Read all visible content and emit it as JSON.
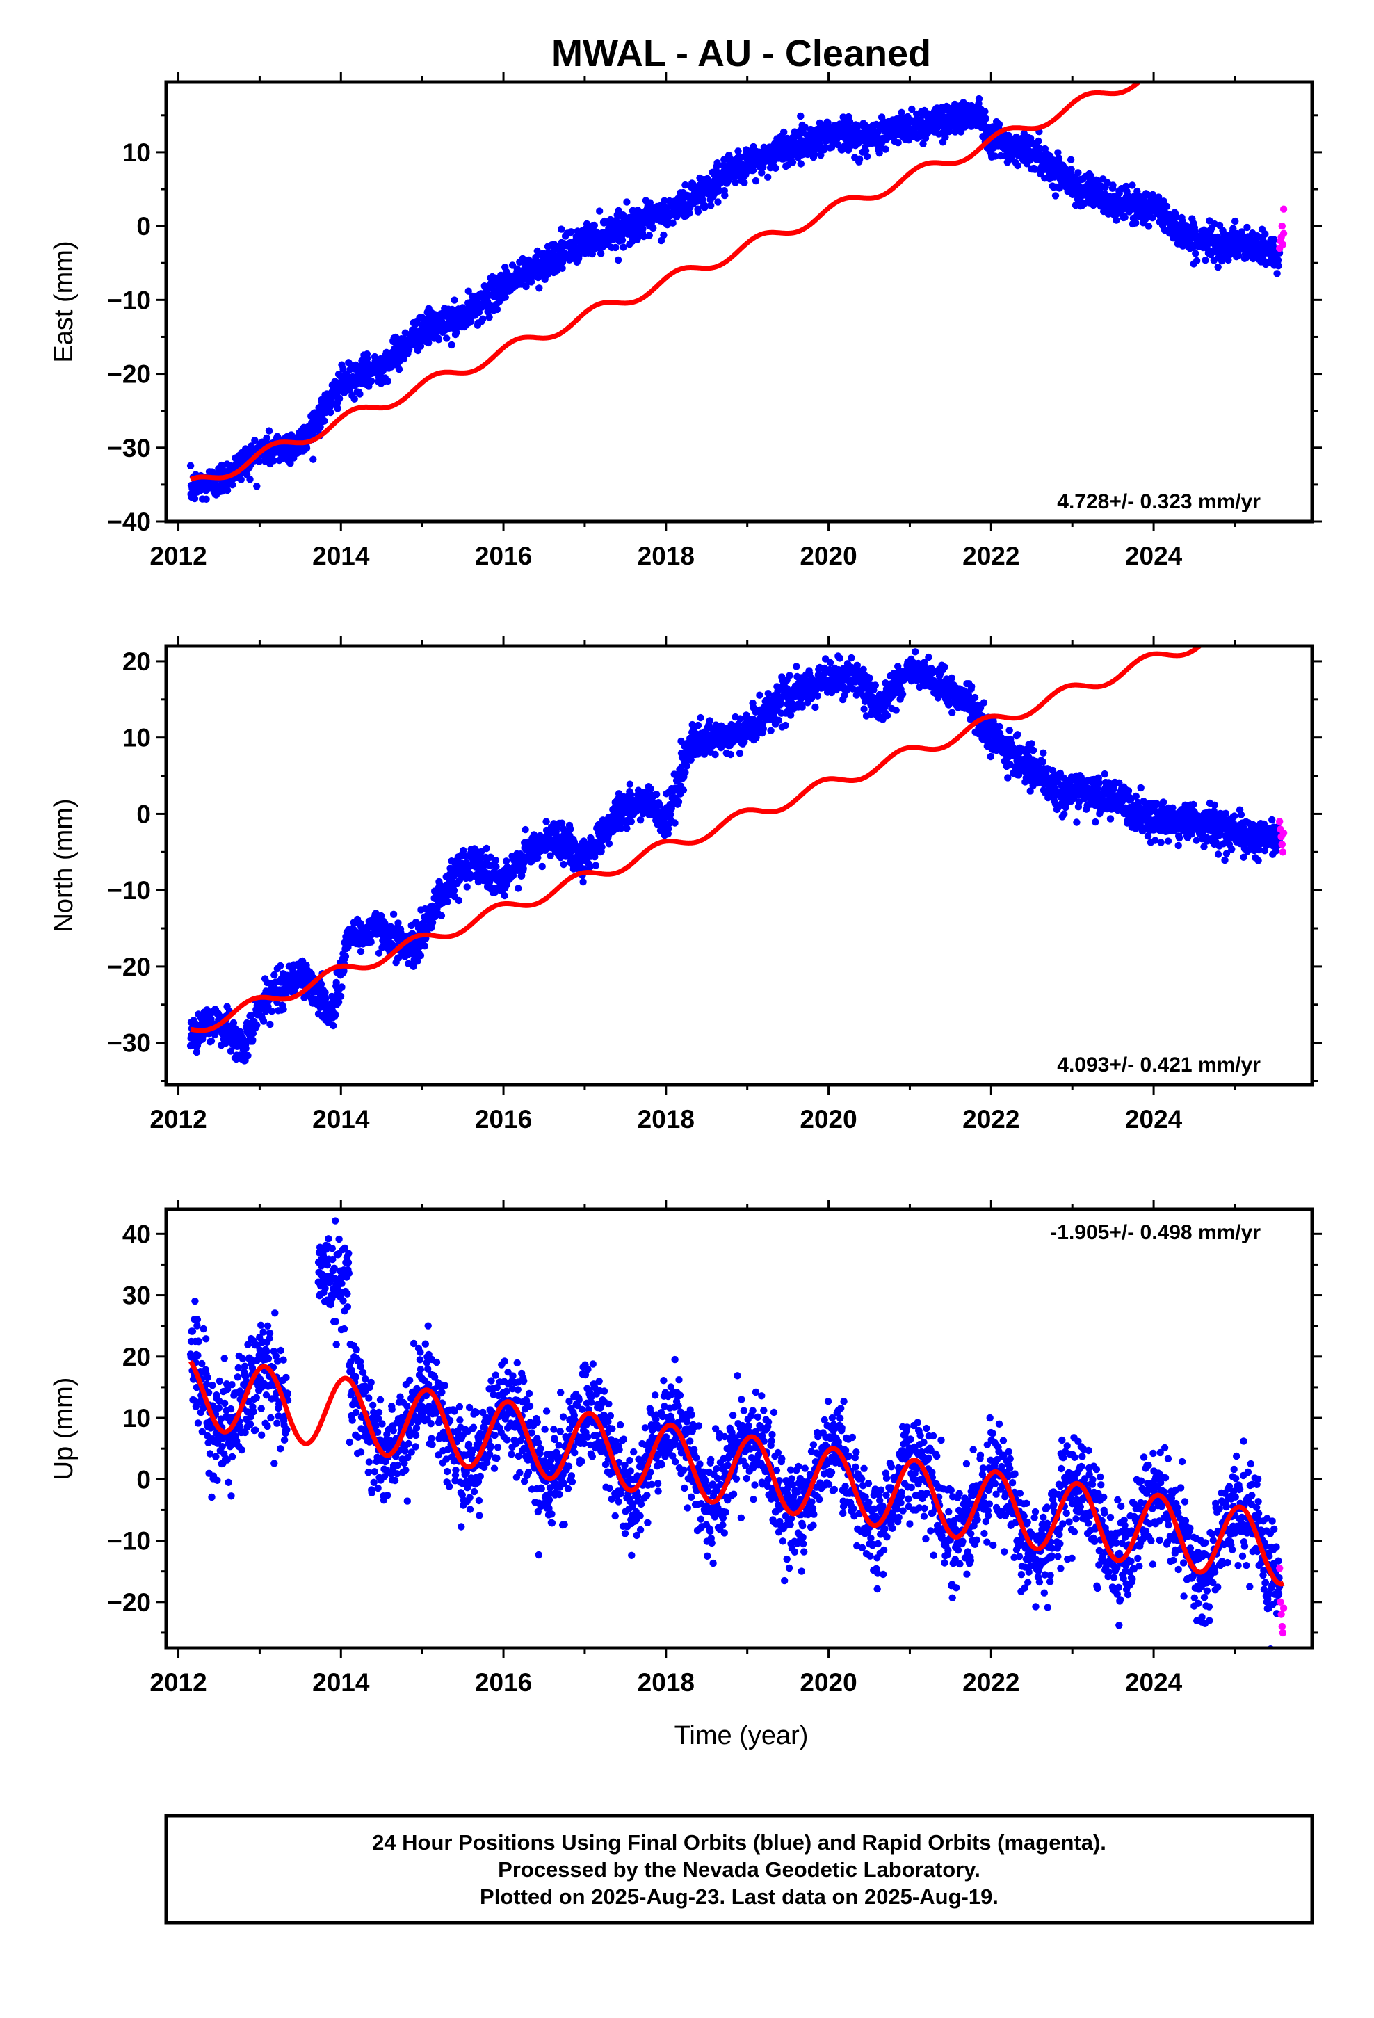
{
  "title": "MWAL  - AU - Cleaned",
  "xlabel": "Time (year)",
  "footer": [
    "24 Hour Positions Using Final Orbits (blue) and Rapid Orbits (magenta).",
    "Processed by the Nevada Geodetic Laboratory.",
    "Plotted on 2025-Aug-23. Last data on 2025-Aug-19."
  ],
  "colors": {
    "final": "#0000ff",
    "rapid": "#ff00ff",
    "model": "#ff0000",
    "frame": "#000000"
  },
  "chart_data": [
    {
      "type": "scatter",
      "name": "east",
      "ylabel": "East (mm)",
      "rate_label": "4.728+/- 0.323 mm/yr",
      "xlim": [
        2011.85,
        2025.95
      ],
      "ylim": [
        -40,
        19.5
      ],
      "xticks": [
        2012,
        2014,
        2016,
        2018,
        2020,
        2022,
        2024
      ],
      "yticks": [
        -40,
        -30,
        -20,
        -10,
        0,
        10
      ],
      "series": [
        {
          "name": "final",
          "role": "blue",
          "trend": [
            [
              2012.15,
              -35.5
            ],
            [
              2012.5,
              -34.5
            ],
            [
              2013.0,
              -30.5
            ],
            [
              2013.5,
              -29.5
            ],
            [
              2014.0,
              -21.5
            ],
            [
              2014.5,
              -19
            ],
            [
              2015.0,
              -14
            ],
            [
              2015.5,
              -12.5
            ],
            [
              2016.0,
              -8
            ],
            [
              2016.5,
              -5
            ],
            [
              2017.0,
              -2
            ],
            [
              2017.5,
              0
            ],
            [
              2018.0,
              1.5
            ],
            [
              2018.5,
              5
            ],
            [
              2019.0,
              8.5
            ],
            [
              2019.5,
              10.5
            ],
            [
              2020.0,
              12.5
            ],
            [
              2020.5,
              12
            ],
            [
              2021.0,
              13.5
            ],
            [
              2021.5,
              14.5
            ],
            [
              2021.85,
              15.5
            ],
            [
              2022.0,
              12
            ],
            [
              2022.5,
              10
            ],
            [
              2023.0,
              6
            ],
            [
              2023.5,
              3
            ],
            [
              2024.0,
              2.5
            ],
            [
              2024.5,
              -2
            ],
            [
              2025.0,
              -2.5
            ],
            [
              2025.5,
              -3.5
            ]
          ],
          "noise": 1.1
        },
        {
          "name": "rapid",
          "role": "magenta",
          "points": [
            [
              2025.55,
              -3
            ],
            [
              2025.56,
              -2
            ],
            [
              2025.57,
              -1.5
            ],
            [
              2025.58,
              0
            ],
            [
              2025.59,
              -2.5
            ],
            [
              2025.6,
              2.3
            ],
            [
              2025.6,
              -1
            ]
          ]
        }
      ],
      "model": {
        "rate": 4.728,
        "t0": 2012.15,
        "y0": -35.2,
        "amp1": 0.9,
        "phase1": 0.0
      }
    },
    {
      "type": "scatter",
      "name": "north",
      "ylabel": "North (mm)",
      "rate_label": "4.093+/- 0.421 mm/yr",
      "xlim": [
        2011.85,
        2025.95
      ],
      "ylim": [
        -35.5,
        22
      ],
      "xticks": [
        2012,
        2014,
        2016,
        2018,
        2020,
        2022,
        2024
      ],
      "yticks": [
        -30,
        -20,
        -10,
        0,
        10,
        20
      ],
      "series": [
        {
          "name": "final",
          "role": "blue",
          "trend": [
            [
              2012.15,
              -29
            ],
            [
              2012.5,
              -27
            ],
            [
              2012.8,
              -31
            ],
            [
              2013.0,
              -25
            ],
            [
              2013.5,
              -21
            ],
            [
              2013.9,
              -26
            ],
            [
              2014.1,
              -16
            ],
            [
              2014.5,
              -15
            ],
            [
              2014.9,
              -18
            ],
            [
              2015.2,
              -11
            ],
            [
              2015.6,
              -6
            ],
            [
              2016.0,
              -9
            ],
            [
              2016.3,
              -5
            ],
            [
              2016.7,
              -3
            ],
            [
              2017.0,
              -6
            ],
            [
              2017.4,
              0
            ],
            [
              2017.8,
              2
            ],
            [
              2018.0,
              -1
            ],
            [
              2018.3,
              9
            ],
            [
              2018.8,
              10
            ],
            [
              2019.0,
              11
            ],
            [
              2019.4,
              15
            ],
            [
              2019.7,
              16
            ],
            [
              2020.0,
              18
            ],
            [
              2020.3,
              18
            ],
            [
              2020.6,
              14
            ],
            [
              2021.0,
              19
            ],
            [
              2021.3,
              17
            ],
            [
              2021.7,
              15
            ],
            [
              2022.0,
              10
            ],
            [
              2022.4,
              7
            ],
            [
              2022.8,
              3
            ],
            [
              2023.1,
              3
            ],
            [
              2023.5,
              2
            ],
            [
              2023.8,
              0
            ],
            [
              2024.1,
              -1
            ],
            [
              2024.5,
              -1
            ],
            [
              2024.9,
              -2
            ],
            [
              2025.2,
              -3
            ],
            [
              2025.55,
              -3
            ]
          ],
          "noise": 1.2
        },
        {
          "name": "rapid",
          "role": "magenta",
          "points": [
            [
              2025.55,
              -1
            ],
            [
              2025.56,
              -2
            ],
            [
              2025.57,
              -3
            ],
            [
              2025.58,
              -4
            ],
            [
              2025.59,
              -5
            ],
            [
              2025.6,
              -2.5
            ]
          ]
        }
      ],
      "model": {
        "rate": 4.093,
        "t0": 2012.15,
        "y0": -28.3,
        "amp1": 0.9,
        "phase1": 1.5
      }
    },
    {
      "type": "scatter",
      "name": "up",
      "ylabel": "Up (mm)",
      "rate_label": "-1.905+/- 0.498 mm/yr",
      "xlim": [
        2011.85,
        2025.95
      ],
      "ylim": [
        -27.5,
        44
      ],
      "xticks": [
        2012,
        2014,
        2016,
        2018,
        2020,
        2022,
        2024
      ],
      "yticks": [
        -20,
        -10,
        0,
        10,
        20,
        30,
        40
      ],
      "series": [
        {
          "name": "final",
          "role": "blue",
          "noise": 4.0,
          "gap": [
            2013.35,
            2013.72
          ],
          "outlier_cluster": {
            "x": [
              2013.72,
              2014.1
            ],
            "center": 33,
            "spread": 3.5
          }
        },
        {
          "name": "rapid",
          "role": "magenta",
          "points": [
            [
              2025.55,
              -14.5
            ],
            [
              2025.56,
              -20
            ],
            [
              2025.57,
              -22
            ],
            [
              2025.58,
              -24
            ],
            [
              2025.59,
              -25
            ],
            [
              2025.6,
              -21
            ]
          ]
        }
      ],
      "model": {
        "rate": -1.905,
        "t0": 2012.15,
        "y0": 14.3,
        "amp1": 5.8,
        "phase1": 0.55
      }
    }
  ]
}
